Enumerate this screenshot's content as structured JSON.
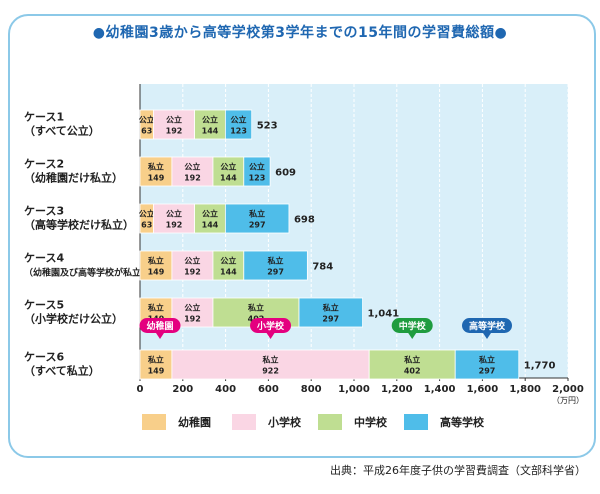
{
  "title": "●幼稚園3歳から高等学校第3学年までの15年間の学習費総額●",
  "source": "出典：平成26年度子供の学習費調査（文部科学省）",
  "chart_data": {
    "type": "bar",
    "orientation": "horizontal",
    "stacked": true,
    "xlim": [
      0,
      2000
    ],
    "xticks": [
      "0",
      "200",
      "400",
      "600",
      "800",
      "1,000",
      "1,200",
      "1,400",
      "1,600",
      "1,800",
      "2,000"
    ],
    "xtick_values": [
      0,
      200,
      400,
      600,
      800,
      1000,
      1200,
      1400,
      1600,
      1800,
      2000
    ],
    "unit": "（万円）",
    "grid": true,
    "legend_position": "bottom",
    "series": [
      {
        "name": "幼稚園",
        "color": "#f8cf8a"
      },
      {
        "name": "小学校",
        "color": "#fad6e4"
      },
      {
        "name": "中学校",
        "color": "#bfde92"
      },
      {
        "name": "高等学校",
        "color": "#4fbde9"
      }
    ],
    "cases": [
      {
        "label1": "ケース1",
        "label2": "（すべて公立）",
        "total": "523",
        "segments": [
          {
            "type": "公立",
            "value": 63,
            "display": "63"
          },
          {
            "type": "公立",
            "value": 192,
            "display": "192"
          },
          {
            "type": "公立",
            "value": 144,
            "display": "144"
          },
          {
            "type": "公立",
            "value": 123,
            "display": "123"
          }
        ]
      },
      {
        "label1": "ケース2",
        "label2": "（幼稚園だけ私立）",
        "total": "609",
        "segments": [
          {
            "type": "私立",
            "value": 149,
            "display": "149"
          },
          {
            "type": "公立",
            "value": 192,
            "display": "192"
          },
          {
            "type": "公立",
            "value": 144,
            "display": "144"
          },
          {
            "type": "公立",
            "value": 123,
            "display": "123"
          }
        ]
      },
      {
        "label1": "ケース3",
        "label2": "（高等学校だけ私立）",
        "total": "698",
        "segments": [
          {
            "type": "公立",
            "value": 63,
            "display": "63"
          },
          {
            "type": "公立",
            "value": 192,
            "display": "192"
          },
          {
            "type": "公立",
            "value": 144,
            "display": "144"
          },
          {
            "type": "私立",
            "value": 297,
            "display": "297"
          }
        ]
      },
      {
        "label1": "ケース4",
        "label2": "（幼稚園及び高等学校が私立）",
        "total": "784",
        "segments": [
          {
            "type": "私立",
            "value": 149,
            "display": "149"
          },
          {
            "type": "公立",
            "value": 192,
            "display": "192"
          },
          {
            "type": "公立",
            "value": 144,
            "display": "144"
          },
          {
            "type": "私立",
            "value": 297,
            "display": "297"
          }
        ]
      },
      {
        "label1": "ケース5",
        "label2": "（小学校だけ公立）",
        "total": "1,041",
        "segments": [
          {
            "type": "私立",
            "value": 149,
            "display": "149"
          },
          {
            "type": "公立",
            "value": 192,
            "display": "192"
          },
          {
            "type": "私立",
            "value": 402,
            "display": "402"
          },
          {
            "type": "私立",
            "value": 297,
            "display": "297"
          }
        ]
      },
      {
        "label1": "ケース6",
        "label2": "（すべて私立）",
        "total": "1,770",
        "segments": [
          {
            "type": "私立",
            "value": 149,
            "display": "149"
          },
          {
            "type": "私立",
            "value": 922,
            "display": "922"
          },
          {
            "type": "私立",
            "value": 402,
            "display": "402"
          },
          {
            "type": "私立",
            "value": 297,
            "display": "297"
          }
        ]
      }
    ],
    "callouts": [
      {
        "label": "幼稚園",
        "color": "#e4007f",
        "series_index": 0
      },
      {
        "label": "小学校",
        "color": "#e4007f",
        "series_index": 1
      },
      {
        "label": "中学校",
        "color": "#1f9c3f",
        "series_index": 2
      },
      {
        "label": "高等学校",
        "color": "#1f67b1",
        "series_index": 3
      }
    ]
  }
}
